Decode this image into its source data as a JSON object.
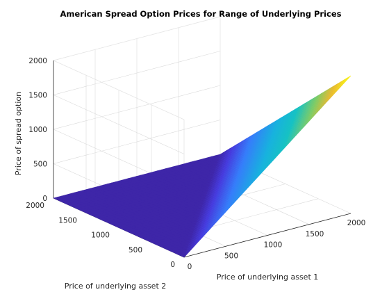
{
  "chart_data": {
    "type": "surface",
    "title": "American Spread Option Prices for Range of Underlying Prices",
    "xlabel": "Price of underlying asset 1",
    "ylabel": "Price of underlying asset 2",
    "zlabel": "Price of spread option",
    "xlim": [
      0,
      2000
    ],
    "ylim": [
      0,
      2000
    ],
    "zlim": [
      0,
      2000
    ],
    "xticks": [
      0,
      500,
      1000,
      1500,
      2000
    ],
    "yticks": [
      0,
      500,
      1000,
      1500,
      2000
    ],
    "zticks": [
      0,
      500,
      1000,
      1500,
      2000
    ],
    "grid": true,
    "colormap": "parula",
    "surface": {
      "x": [
        0,
        200,
        400,
        600,
        800,
        1000,
        1200,
        1400,
        1600,
        1800,
        2000
      ],
      "y": [
        0,
        200,
        400,
        600,
        800,
        1000,
        1200,
        1400,
        1600,
        1800,
        2000
      ],
      "z_description_values": "z = max(x - y, 0)",
      "corner_values": {
        "x0_y0": 0,
        "x2000_y0": 2000,
        "x0_y2000": 0,
        "x2000_y2000": 0
      }
    },
    "colors": {
      "low": "#3e26a8",
      "mid": "#17c2c3",
      "high": "#f9fb15"
    }
  }
}
